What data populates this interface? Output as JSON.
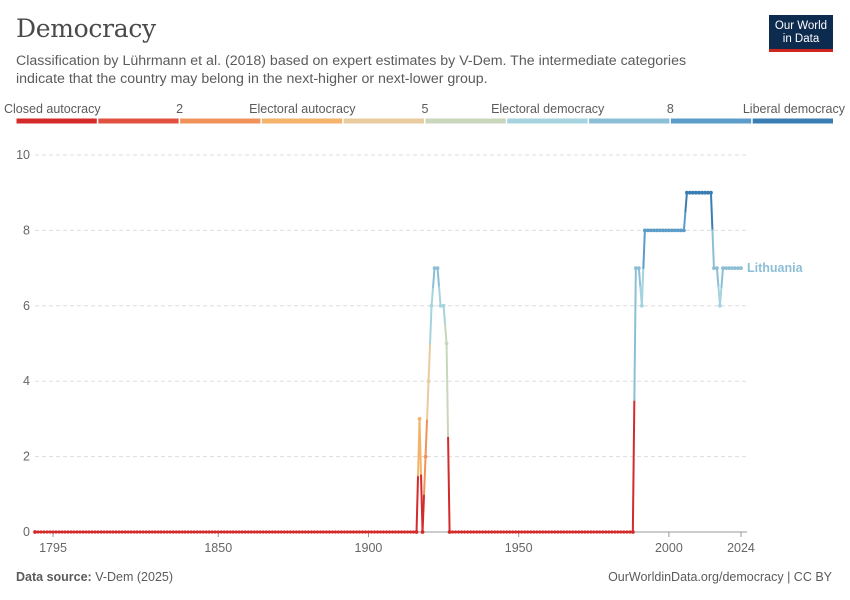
{
  "header": {
    "title": "Democracy",
    "subtitle": "Classification by Lührmann et al. (2018) based on expert estimates by V-Dem. The intermediate categories indicate that the country may belong in the next-higher or next-lower group.",
    "logo_line1": "Our World",
    "logo_line2": "in Data"
  },
  "footer": {
    "source_label": "Data source:",
    "source_value": "V-Dem (2025)",
    "url": "OurWorldinData.org/democracy | CC BY"
  },
  "colors": {
    "scale": [
      "#d42a2a",
      "#e0513f",
      "#f0935a",
      "#f3b36b",
      "#e9cba0",
      "#c8d7bc",
      "#a5d3de",
      "#8cbfd6",
      "#5b9dc8",
      "#3a7db3"
    ]
  },
  "chart_data": {
    "type": "line",
    "title": "Democracy",
    "xlabel": "",
    "ylabel": "",
    "xlim": [
      1789,
      2026
    ],
    "ylim": [
      0,
      10
    ],
    "grid": true,
    "x_ticks": [
      "1795",
      "1850",
      "1900",
      "1950",
      "2000",
      "2024"
    ],
    "y_ticks": [
      "0",
      "2",
      "4",
      "6",
      "8",
      "10"
    ],
    "legend": {
      "placement": "top",
      "labels": [
        {
          "text": "Closed autocracy",
          "value": 0
        },
        {
          "text": "2",
          "value": 2
        },
        {
          "text": "Electoral autocracy",
          "value": 3.5
        },
        {
          "text": "5",
          "value": 5
        },
        {
          "text": "Electoral democracy",
          "value": 6.5
        },
        {
          "text": "8",
          "value": 8
        },
        {
          "text": "Liberal democracy",
          "value": 10
        }
      ]
    },
    "series": [
      {
        "name": "Lithuania",
        "points": [
          [
            1789,
            0
          ],
          [
            1916,
            0
          ],
          [
            1917,
            3
          ],
          [
            1918,
            0
          ],
          [
            1919,
            2
          ],
          [
            1920,
            4
          ],
          [
            1921,
            6
          ],
          [
            1922,
            7
          ],
          [
            1923,
            7
          ],
          [
            1924,
            6
          ],
          [
            1925,
            6
          ],
          [
            1926,
            5
          ],
          [
            1927,
            0
          ],
          [
            1988,
            0
          ],
          [
            1989,
            7
          ],
          [
            1990,
            7
          ],
          [
            1991,
            6
          ],
          [
            1992,
            8
          ],
          [
            1993,
            8
          ],
          [
            1994,
            8
          ],
          [
            1995,
            8
          ],
          [
            1996,
            8
          ],
          [
            1997,
            8
          ],
          [
            1998,
            8
          ],
          [
            1999,
            8
          ],
          [
            2000,
            8
          ],
          [
            2001,
            8
          ],
          [
            2002,
            8
          ],
          [
            2003,
            8
          ],
          [
            2004,
            8
          ],
          [
            2005,
            8
          ],
          [
            2006,
            9
          ],
          [
            2007,
            9
          ],
          [
            2008,
            9
          ],
          [
            2009,
            9
          ],
          [
            2010,
            9
          ],
          [
            2011,
            9
          ],
          [
            2012,
            9
          ],
          [
            2013,
            9
          ],
          [
            2014,
            9
          ],
          [
            2015,
            7
          ],
          [
            2016,
            7
          ],
          [
            2017,
            6
          ],
          [
            2018,
            7
          ],
          [
            2019,
            7
          ],
          [
            2020,
            7
          ],
          [
            2021,
            7
          ],
          [
            2022,
            7
          ],
          [
            2023,
            7
          ],
          [
            2024,
            7
          ]
        ]
      }
    ]
  }
}
